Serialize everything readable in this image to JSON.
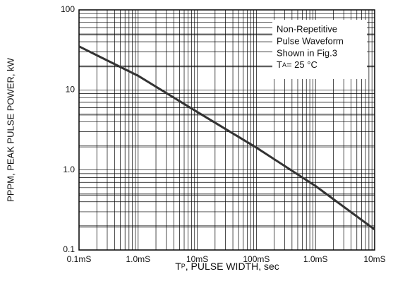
{
  "chart_data": {
    "type": "line",
    "log_x": true,
    "log_y": true,
    "grid": true,
    "x_label": {
      "symbol": "T",
      "sub": "P",
      "text": ", PULSE  WIDTH, sec"
    },
    "y_label": "PPPM, PEAK PULSE POWER, kW",
    "annotation": [
      "Non-Repetitive",
      "Pulse Waveform",
      "Shown in Fig.3"
    ],
    "annotation_temp": {
      "symbol": "T",
      "sub": "A",
      "text": "= 25 °C"
    },
    "x": [
      0.0001,
      0.001,
      0.01,
      0.1,
      1,
      10
    ],
    "series": [
      {
        "color": "#333333",
        "values": [
          35,
          15,
          5.3,
          1.9,
          0.63,
          0.18
        ]
      }
    ],
    "xlim": [
      0.0001,
      10
    ],
    "xticks": [
      {
        "value": 0.0001,
        "label": "0.1mS"
      },
      {
        "value": 0.001,
        "label": "1.0mS"
      },
      {
        "value": 0.01,
        "label": "10mS"
      },
      {
        "value": 0.1,
        "label": "100mS"
      },
      {
        "value": 1,
        "label": "1.0mS"
      },
      {
        "value": 10,
        "label": "10mS"
      }
    ],
    "ylim": [
      0.1,
      100
    ],
    "yticks": [
      0.1,
      {
        "value": 1,
        "label": "1.0"
      },
      10,
      100
    ]
  }
}
